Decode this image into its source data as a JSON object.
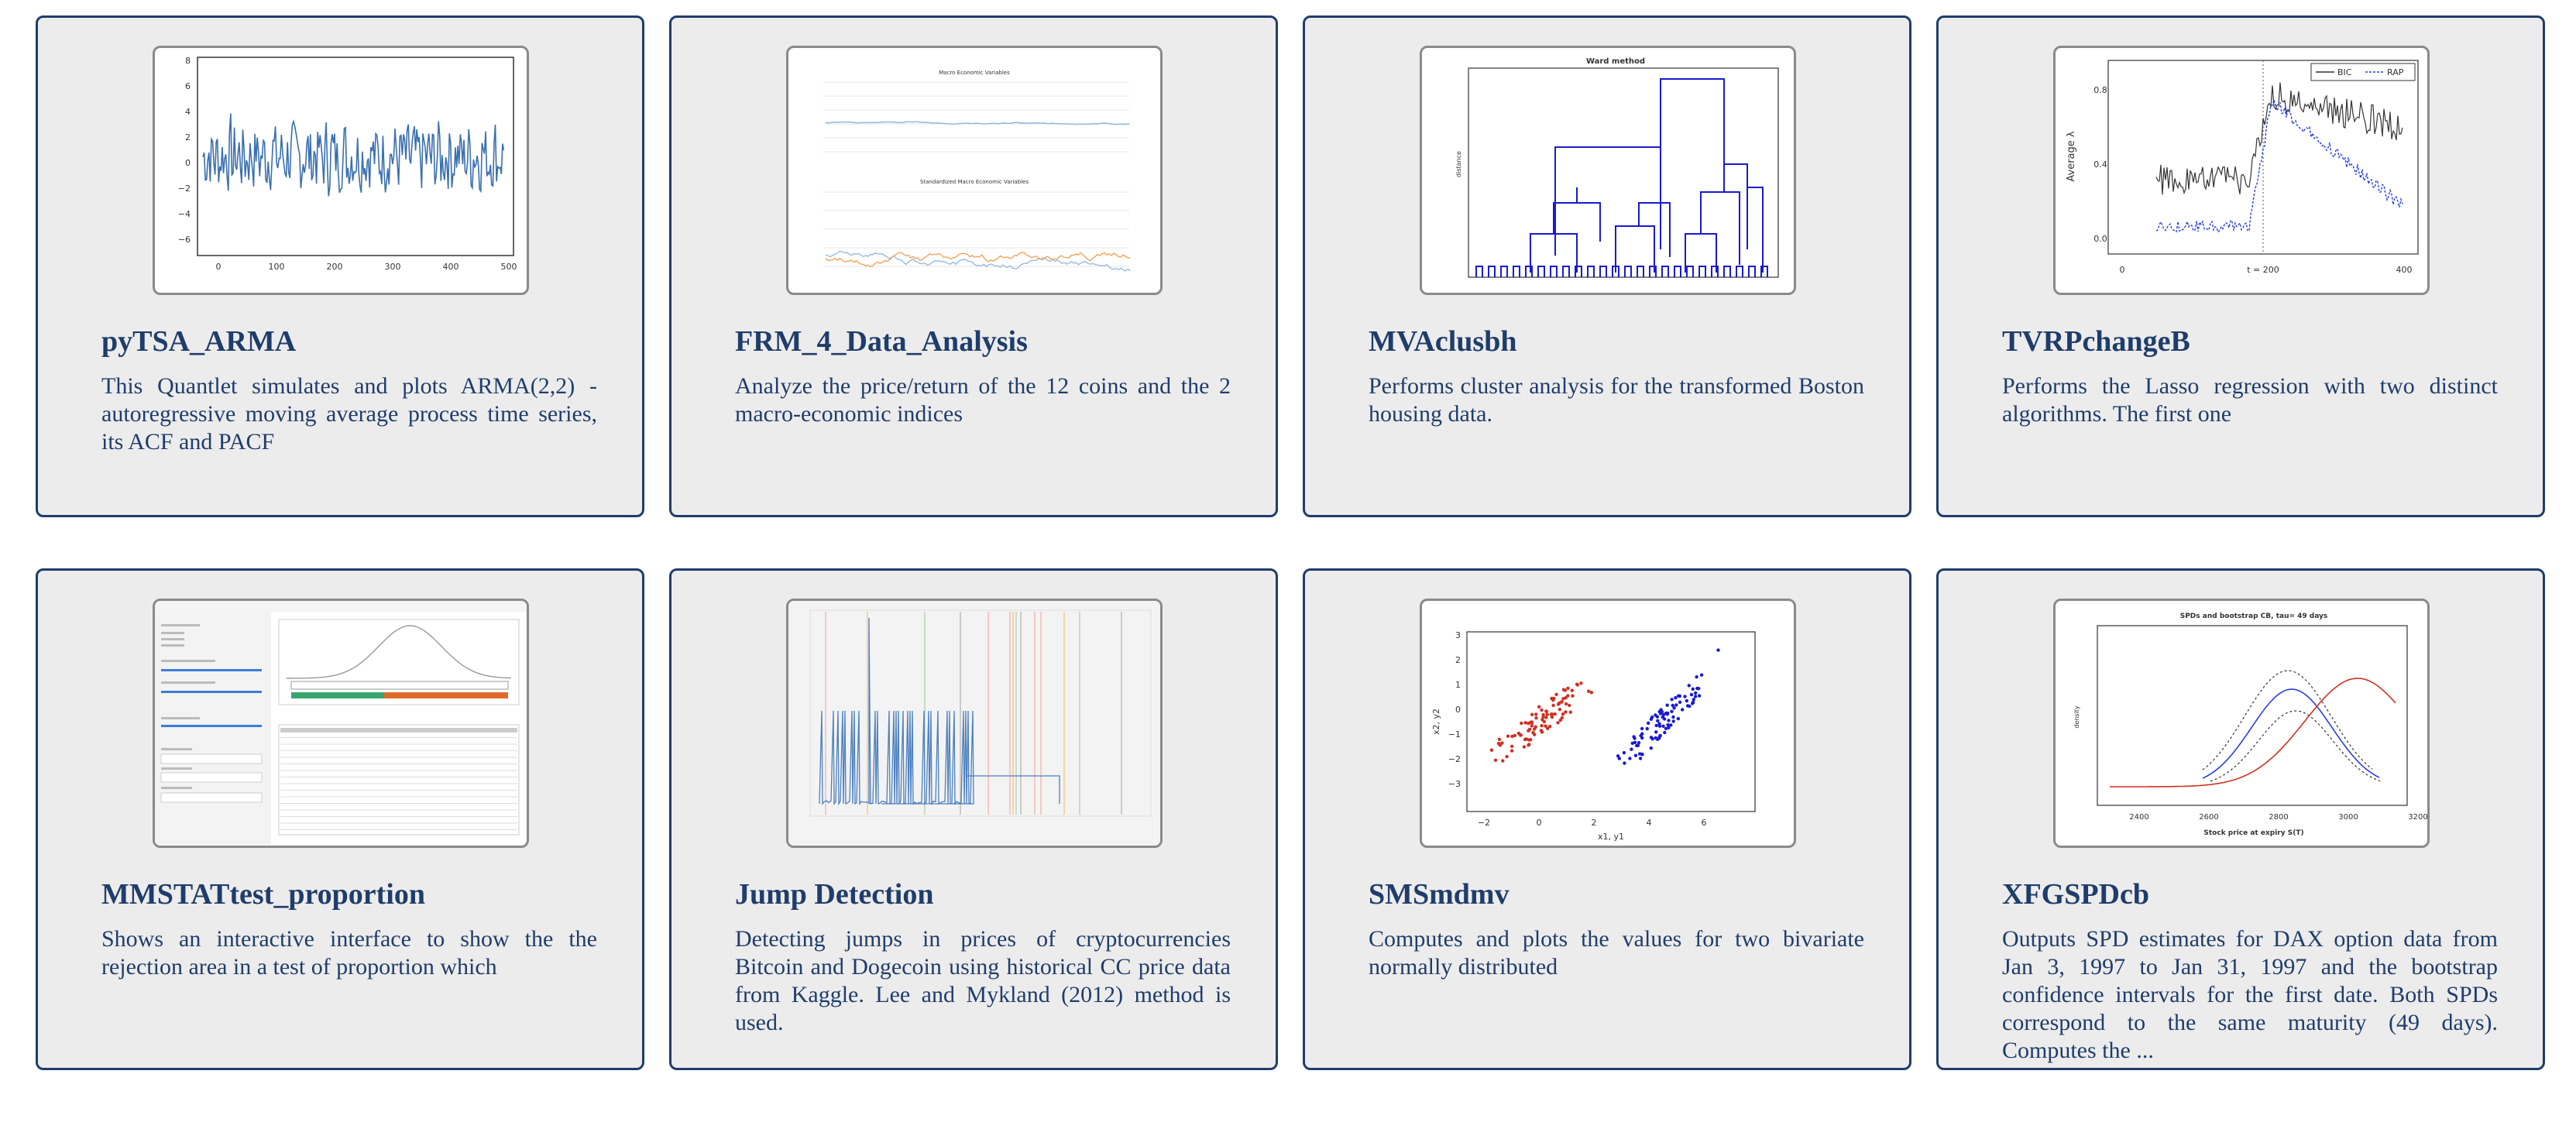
{
  "cards": [
    {
      "title": "pyTSA_ARMA",
      "description": "This Quantlet simulates and plots ARMA(2,2) - autoregressive moving average process time series, its ACF and PACF",
      "thumb": {
        "y_ticks": [
          "8",
          "6",
          "4",
          "2",
          "0",
          "−2",
          "−4",
          "−6"
        ],
        "x_ticks": [
          "0",
          "100",
          "200",
          "300",
          "400",
          "500"
        ]
      }
    },
    {
      "title": "FRM_4_Data_Analysis",
      "description": "Analyze the price/return of the 12 coins and the 2 macro-economic indices",
      "thumb": {
        "top_title": "Macro Economic Variables",
        "bottom_title": "Standardized Macro Economic Variables"
      }
    },
    {
      "title": "MVAclusbh",
      "description": "Performs cluster analysis for the transformed Boston housing data.",
      "thumb": {
        "plot_title": "Ward method",
        "y_label": "distance"
      }
    },
    {
      "title": "TVRPchangeB",
      "description": "Performs the Lasso regression with two distinct algorithms. The first one",
      "thumb": {
        "legend": [
          "BIC",
          "RAP"
        ],
        "y_label": "Average λ",
        "y_ticks": [
          "0.8",
          "0.4",
          "0.0"
        ],
        "x_ticks": [
          "0",
          "t = 200",
          "400"
        ]
      }
    },
    {
      "title": "MMSTATtest_proportion",
      "description": "Shows an interactive interface to show the the rejection area in a test of proportion which",
      "thumb": {}
    },
    {
      "title": "Jump Detection",
      "description": "Detecting jumps in prices of cryptocurrencies Bitcoin and Dogecoin using historical CC price data from Kaggle. Lee and Mykland (2012) method is used.",
      "thumb": {}
    },
    {
      "title": "SMSmdmv",
      "description": "Computes and plots the values for two bivariate normally distributed",
      "thumb": {
        "x_label": "x1, y1",
        "y_label": "x2, y2",
        "x_ticks": [
          "−2",
          "0",
          "2",
          "4",
          "6"
        ],
        "y_ticks": [
          "3",
          "2",
          "1",
          "0",
          "−1",
          "−2",
          "−3"
        ]
      }
    },
    {
      "title": "XFGSPDcb",
      "description": "Outputs SPD estimates for DAX option data from Jan 3, 1997 to Jan 31, 1997 and the bootstrap confidence intervals for the first date. Both SPDs correspond to the same maturity (49 days). Computes the ...",
      "thumb": {
        "plot_title": "SPDs and bootstrap CB, tau= 49 days",
        "x_label": "Stock price at expiry S(T)",
        "y_label": "density",
        "x_ticks": [
          "2400",
          "2600",
          "2800",
          "3000",
          "3200"
        ]
      }
    }
  ],
  "colors": {
    "card_bg": "#ececec",
    "border": "#1f3d6b",
    "text": "#1f3d6b",
    "series_blue": "#3a6fb0",
    "series_red": "#d03020",
    "series_orange": "#f0a050"
  }
}
